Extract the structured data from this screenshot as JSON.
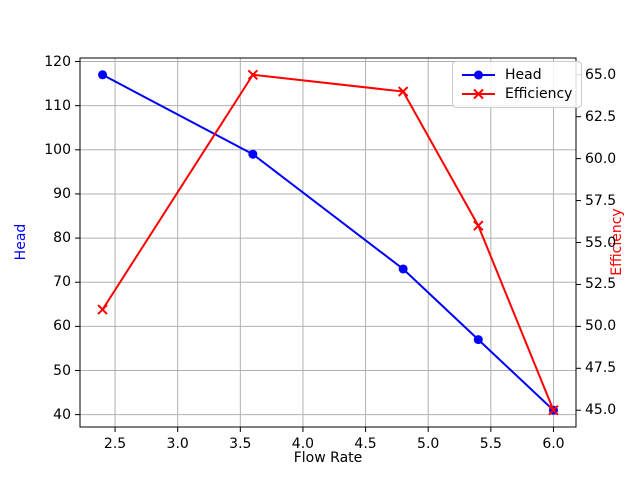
{
  "chart_data": {
    "type": "line",
    "title": "",
    "xlabel": "Flow Rate",
    "ylabel_left": "Head",
    "ylabel_right": "Efficiency",
    "x": [
      2.4,
      3.6,
      4.8,
      5.4,
      6.0
    ],
    "series": [
      {
        "name": "Head",
        "axis": "left",
        "values": [
          117,
          99,
          73,
          57,
          41
        ],
        "color": "#0000ff",
        "marker": "circle"
      },
      {
        "name": "Efficiency",
        "axis": "right",
        "values": [
          51,
          65,
          64,
          56,
          45
        ],
        "color": "#ff0000",
        "marker": "x"
      }
    ],
    "xlim": [
      2.22,
      6.18
    ],
    "ylim_left": [
      37.2,
      120.8
    ],
    "ylim_right": [
      44,
      66
    ],
    "xticks": [
      "2.5",
      "3.0",
      "3.5",
      "4.0",
      "4.5",
      "5.0",
      "5.5",
      "6.0"
    ],
    "yticks_left": [
      "40",
      "50",
      "60",
      "70",
      "80",
      "90",
      "100",
      "110",
      "120"
    ],
    "yticks_right": [
      "45.0",
      "47.5",
      "50.0",
      "52.5",
      "55.0",
      "57.5",
      "60.0",
      "62.5",
      "65.0"
    ],
    "grid": true,
    "legend_position": "upper right",
    "colors": {
      "background": "#ffffff",
      "grid": "#b0b0b0",
      "spine": "#000000",
      "tick_text": "#000000",
      "head_series": "#0000ff",
      "efficiency_series": "#ff0000"
    }
  }
}
